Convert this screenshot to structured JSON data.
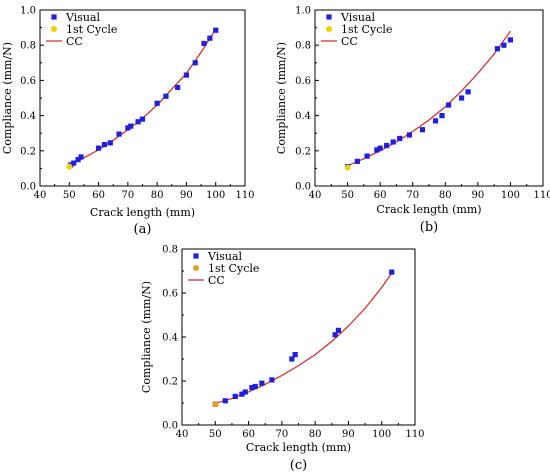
{
  "chart_data": [
    {
      "id": "a",
      "type": "scatter",
      "panel_label": "(a)",
      "xlabel": "Crack length (mm)",
      "ylabel": "Compliance (mm/N)",
      "xlim": [
        40,
        110
      ],
      "ylim": [
        0.0,
        1.0
      ],
      "xticks": [
        "40",
        "50",
        "60",
        "70",
        "80",
        "90",
        "100",
        "110"
      ],
      "yticks": [
        "0.0",
        "0.2",
        "0.4",
        "0.6",
        "0.8",
        "1.0"
      ],
      "legend_position": "top-left",
      "series": [
        {
          "name": "Visual",
          "kind": "scatter",
          "marker": "square",
          "color": "#1f1fe0",
          "x": [
            50.5,
            51.5,
            53,
            54,
            60,
            62,
            64,
            67,
            70,
            71,
            73.5,
            75,
            80,
            83,
            87,
            90,
            93,
            96,
            98,
            100
          ],
          "y": [
            0.12,
            0.13,
            0.15,
            0.165,
            0.215,
            0.235,
            0.245,
            0.295,
            0.33,
            0.34,
            0.365,
            0.38,
            0.47,
            0.51,
            0.56,
            0.63,
            0.7,
            0.81,
            0.84,
            0.885
          ]
        },
        {
          "name": "1st Cycle",
          "kind": "scatter",
          "marker": "circle",
          "color": "#f0d000",
          "x": [
            50
          ],
          "y": [
            0.11
          ]
        },
        {
          "name": "CC",
          "kind": "line",
          "color": "#e02020",
          "x": [
            50,
            55,
            60,
            65,
            70,
            75,
            80,
            85,
            90,
            95,
            100
          ],
          "y": [
            0.115,
            0.16,
            0.205,
            0.26,
            0.32,
            0.385,
            0.46,
            0.55,
            0.64,
            0.76,
            0.89
          ]
        }
      ]
    },
    {
      "id": "b",
      "type": "scatter",
      "panel_label": "(b)",
      "xlabel": "Crack length (mm)",
      "ylabel": "Compliance (mm/N)",
      "xlim": [
        40,
        110
      ],
      "ylim": [
        0.0,
        1.0
      ],
      "xticks": [
        "40",
        "50",
        "60",
        "70",
        "80",
        "90",
        "100",
        "110"
      ],
      "yticks": [
        "0.0",
        "0.2",
        "0.4",
        "0.6",
        "0.8",
        "1.0"
      ],
      "legend_position": "top-left",
      "series": [
        {
          "name": "Visual",
          "kind": "scatter",
          "marker": "square",
          "color": "#1f1fe0",
          "x": [
            50,
            53,
            56,
            59,
            60,
            62,
            64,
            66,
            69,
            73,
            77,
            79,
            81,
            85,
            87,
            96,
            98,
            100
          ],
          "y": [
            0.11,
            0.14,
            0.17,
            0.205,
            0.215,
            0.23,
            0.25,
            0.27,
            0.29,
            0.32,
            0.37,
            0.4,
            0.46,
            0.5,
            0.535,
            0.78,
            0.8,
            0.83
          ]
        },
        {
          "name": "1st Cycle",
          "kind": "scatter",
          "marker": "circle",
          "color": "#f0d000",
          "x": [
            50
          ],
          "y": [
            0.105
          ]
        },
        {
          "name": "CC",
          "kind": "line",
          "color": "#e02020",
          "x": [
            50,
            55,
            60,
            65,
            70,
            75,
            80,
            85,
            90,
            95,
            100
          ],
          "y": [
            0.115,
            0.155,
            0.2,
            0.25,
            0.31,
            0.375,
            0.45,
            0.54,
            0.64,
            0.75,
            0.88
          ]
        }
      ]
    },
    {
      "id": "c",
      "type": "scatter",
      "panel_label": "(c)",
      "xlabel": "Crack length (mm)",
      "ylabel": "Compliance (mm/N)",
      "xlim": [
        40,
        110
      ],
      "ylim": [
        0.0,
        0.8
      ],
      "xticks": [
        "40",
        "50",
        "60",
        "70",
        "80",
        "90",
        "100",
        "110"
      ],
      "yticks": [
        "0.0",
        "0.2",
        "0.4",
        "0.6",
        "0.8"
      ],
      "legend_position": "top-left",
      "series": [
        {
          "name": "Visual",
          "kind": "scatter",
          "marker": "square",
          "color": "#1f1fe0",
          "x": [
            50,
            53,
            56,
            58,
            59,
            61,
            62,
            64,
            67,
            73,
            74,
            86,
            87,
            103
          ],
          "y": [
            0.095,
            0.11,
            0.13,
            0.14,
            0.15,
            0.17,
            0.175,
            0.19,
            0.205,
            0.3,
            0.32,
            0.41,
            0.43,
            0.695
          ]
        },
        {
          "name": "1st Cycle",
          "kind": "scatter",
          "marker": "circle",
          "color": "#e8a020",
          "x": [
            50
          ],
          "y": [
            0.095
          ]
        },
        {
          "name": "CC",
          "kind": "line",
          "color": "#e02020",
          "x": [
            50,
            55,
            60,
            65,
            70,
            75,
            80,
            85,
            90,
            95,
            100,
            103
          ],
          "y": [
            0.098,
            0.12,
            0.15,
            0.185,
            0.225,
            0.27,
            0.32,
            0.38,
            0.45,
            0.53,
            0.625,
            0.69
          ]
        }
      ]
    }
  ]
}
